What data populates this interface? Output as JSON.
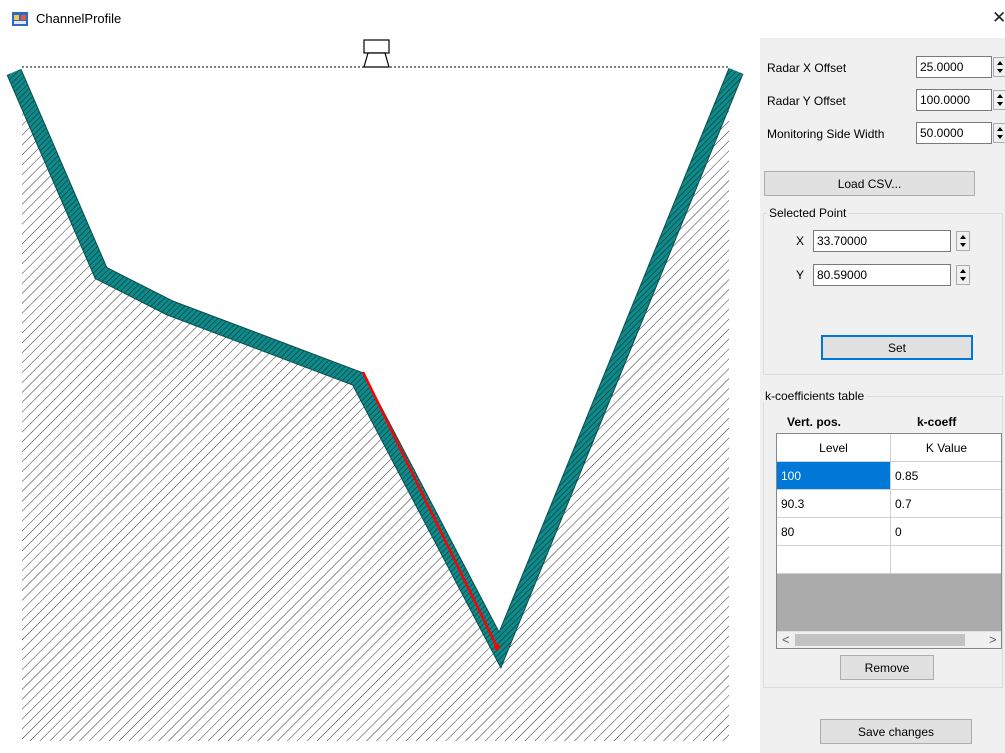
{
  "window": {
    "title": "ChannelProfile",
    "close_glyph": "✕"
  },
  "radar": {
    "x_offset_label": "Radar X Offset",
    "x_offset_value": "25.0000",
    "y_offset_label": "Radar Y Offset",
    "y_offset_value": "100.0000",
    "side_width_label": "Monitoring Side Width",
    "side_width_value": "50.0000"
  },
  "load_csv_label": "Load CSV...",
  "selected_point": {
    "title": "Selected Point",
    "x_label": "X",
    "x_value": "33.70000",
    "y_label": "Y",
    "y_value": "80.59000",
    "set_label": "Set"
  },
  "k_table": {
    "title": "k-coefficients table",
    "vert_pos_label": "Vert. pos.",
    "k_coeff_label": "k-coeff",
    "columns": [
      "Level",
      "K Value"
    ],
    "rows": [
      {
        "level": "100",
        "k": "0.85"
      },
      {
        "level": "90.3",
        "k": "0.7"
      },
      {
        "level": "80",
        "k": "0"
      }
    ],
    "remove_label": "Remove"
  },
  "save_label": "Save changes",
  "colors": {
    "channel_wall": "#008080",
    "selected_segment": "#ff0000",
    "selection_highlight": "#0078d7",
    "panel_bg": "#f0f0f0"
  },
  "icons": {
    "app": "app-icon",
    "radar": "radar-sensor-icon",
    "close": "close-icon",
    "spin": "up-down-spinner-icon",
    "scroll_left": "chevron-left-icon",
    "scroll_right": "chevron-right-icon"
  }
}
